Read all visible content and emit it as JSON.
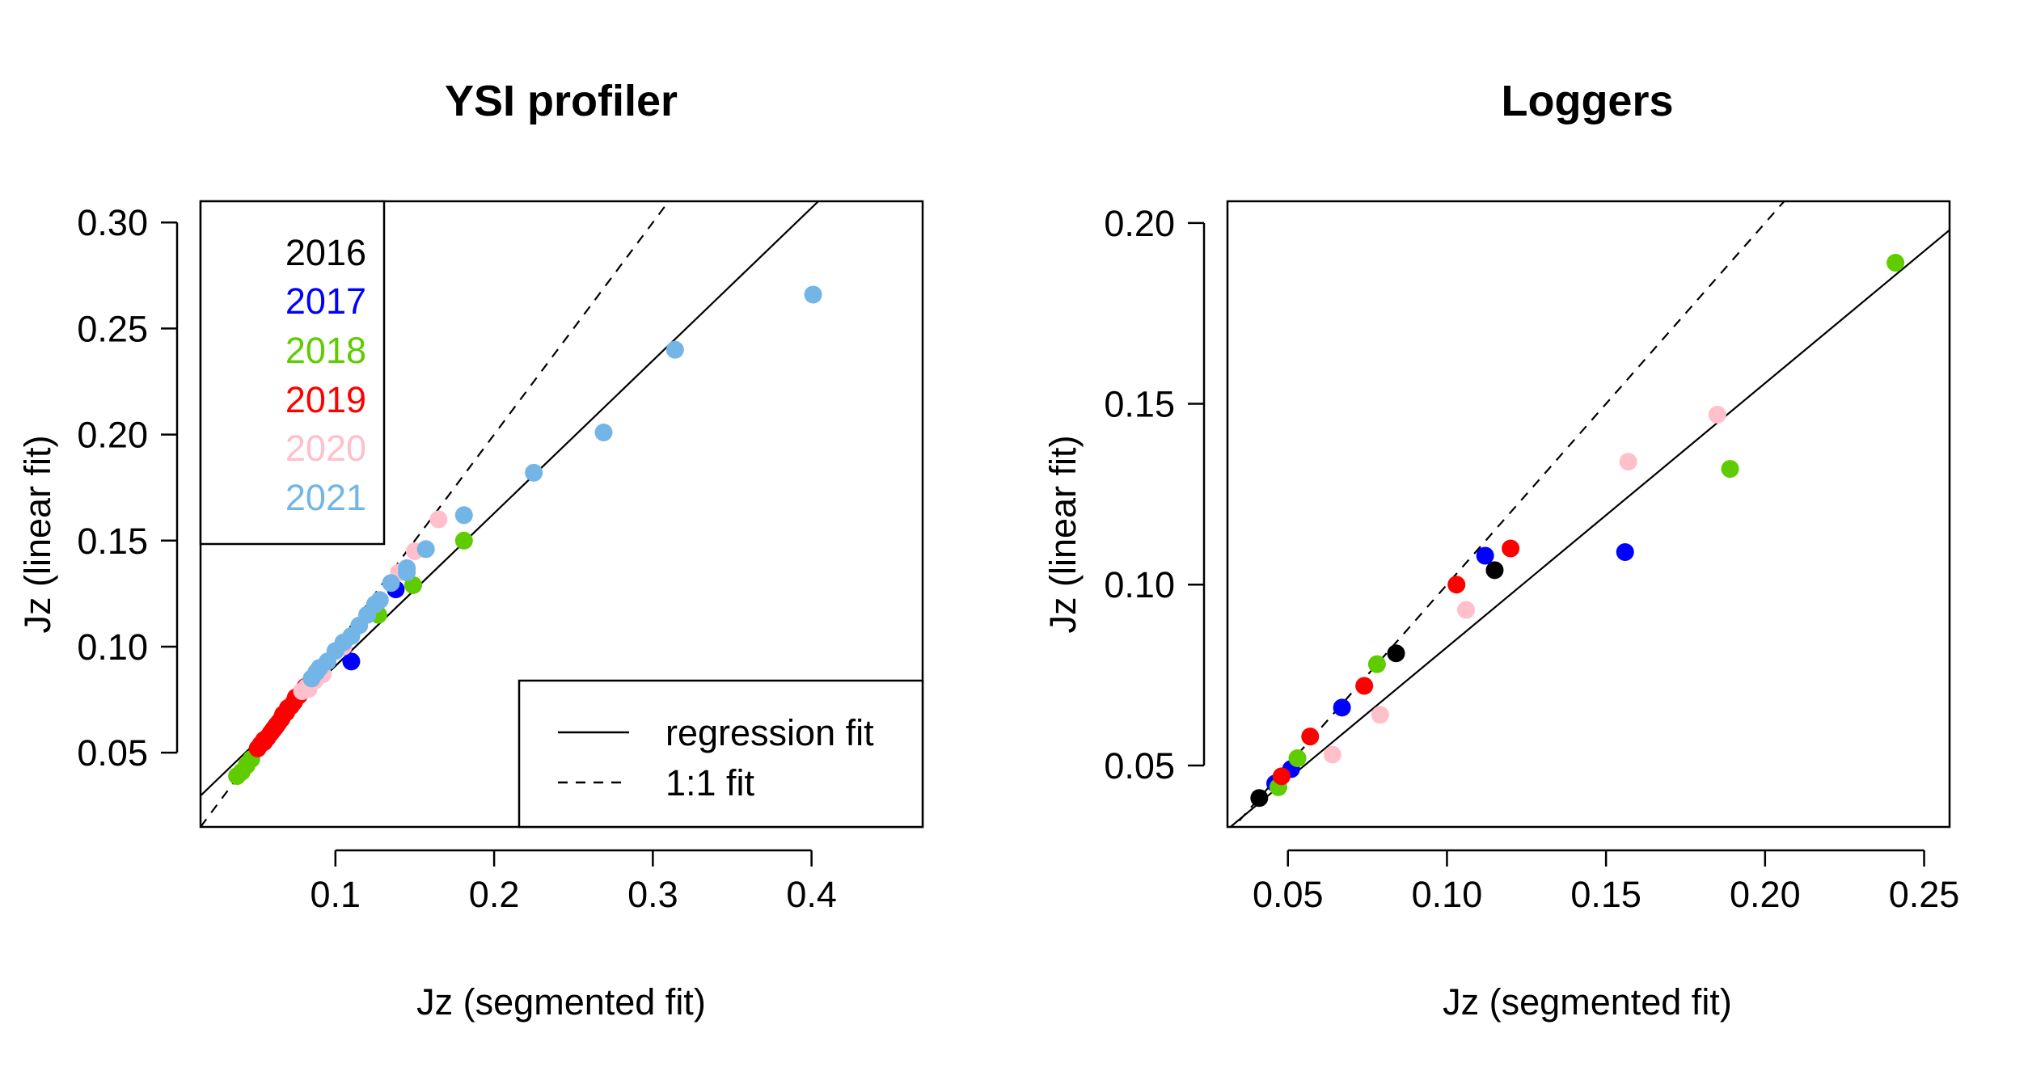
{
  "chart_data": [
    {
      "type": "scatter",
      "title": "YSI profiler",
      "xlabel": "Jz (segmented fit)",
      "ylabel": "Jz (linear fit)",
      "xlim": [
        0.015,
        0.47
      ],
      "ylim": [
        0.015,
        0.31
      ],
      "xticks": [
        0.1,
        0.2,
        0.3,
        0.4
      ],
      "xtick_labels": [
        "0.1",
        "0.2",
        "0.3",
        "0.4"
      ],
      "yticks": [
        0.05,
        0.1,
        0.15,
        0.2,
        0.25,
        0.3
      ],
      "ytick_labels": [
        "0.05",
        "0.10",
        "0.15",
        "0.20",
        "0.25",
        "0.30"
      ],
      "year_legend": {
        "placement": "top-left",
        "entries": [
          {
            "label": "2016",
            "color": "#000000"
          },
          {
            "label": "2017",
            "color": "#0000ff"
          },
          {
            "label": "2018",
            "color": "#5fcc00"
          },
          {
            "label": "2019",
            "color": "#ff0000"
          },
          {
            "label": "2020",
            "color": "#ffc0cb"
          },
          {
            "label": "2021",
            "color": "#73b5e6"
          }
        ]
      },
      "line_legend": {
        "placement": "bottom-right",
        "entries": [
          {
            "label": "regression fit",
            "style": "solid"
          },
          {
            "label": "1:1 fit",
            "style": "dashed"
          }
        ]
      },
      "regression_line": {
        "slope": 0.72,
        "intercept": 0.0189
      },
      "identity_line": {
        "slope": 1,
        "intercept": 0
      },
      "series": [
        {
          "name": "2016",
          "color": "#000000",
          "points": [
            [
              0.063,
              0.063
            ],
            [
              0.066,
              0.066
            ],
            [
              0.061,
              0.061
            ]
          ]
        },
        {
          "name": "2017",
          "color": "#0000ff",
          "points": [
            [
              0.11,
              0.093
            ],
            [
              0.138,
              0.127
            ],
            [
              0.062,
              0.062
            ],
            [
              0.057,
              0.057
            ]
          ]
        },
        {
          "name": "2018",
          "color": "#5fcc00",
          "points": [
            [
              0.038,
              0.039
            ],
            [
              0.041,
              0.041
            ],
            [
              0.044,
              0.044
            ],
            [
              0.047,
              0.047
            ],
            [
              0.127,
              0.115
            ],
            [
              0.149,
              0.129
            ],
            [
              0.181,
              0.15
            ]
          ]
        },
        {
          "name": "2019",
          "color": "#ff0000",
          "points": [
            [
              0.051,
              0.052
            ],
            [
              0.053,
              0.054
            ],
            [
              0.055,
              0.055
            ],
            [
              0.057,
              0.057
            ],
            [
              0.059,
              0.059
            ],
            [
              0.06,
              0.06
            ],
            [
              0.062,
              0.062
            ],
            [
              0.064,
              0.064
            ],
            [
              0.066,
              0.066
            ],
            [
              0.067,
              0.068
            ],
            [
              0.069,
              0.069
            ],
            [
              0.07,
              0.071
            ],
            [
              0.072,
              0.072
            ],
            [
              0.074,
              0.074
            ],
            [
              0.075,
              0.076
            ],
            [
              0.077,
              0.077
            ],
            [
              0.079,
              0.079
            ],
            [
              0.081,
              0.081
            ],
            [
              0.083,
              0.082
            ],
            [
              0.055,
              0.056
            ]
          ]
        },
        {
          "name": "2020",
          "color": "#ffc0cb",
          "points": [
            [
              0.079,
              0.079
            ],
            [
              0.083,
              0.08
            ],
            [
              0.087,
              0.084
            ],
            [
              0.092,
              0.087
            ],
            [
              0.105,
              0.1
            ],
            [
              0.11,
              0.105
            ],
            [
              0.12,
              0.115
            ],
            [
              0.125,
              0.12
            ],
            [
              0.14,
              0.135
            ],
            [
              0.15,
              0.145
            ],
            [
              0.165,
              0.16
            ],
            [
              0.082,
              0.081
            ],
            [
              0.085,
              0.083
            ]
          ]
        },
        {
          "name": "2021",
          "color": "#73b5e6",
          "points": [
            [
              0.085,
              0.085
            ],
            [
              0.088,
              0.088
            ],
            [
              0.09,
              0.09
            ],
            [
              0.095,
              0.093
            ],
            [
              0.1,
              0.098
            ],
            [
              0.105,
              0.102
            ],
            [
              0.11,
              0.105
            ],
            [
              0.115,
              0.11
            ],
            [
              0.12,
              0.115
            ],
            [
              0.125,
              0.12
            ],
            [
              0.128,
              0.122
            ],
            [
              0.135,
              0.13
            ],
            [
              0.145,
              0.135
            ],
            [
              0.145,
              0.137
            ],
            [
              0.157,
              0.146
            ],
            [
              0.181,
              0.162
            ],
            [
              0.225,
              0.182
            ],
            [
              0.269,
              0.201
            ],
            [
              0.314,
              0.24
            ],
            [
              0.401,
              0.266
            ]
          ]
        }
      ]
    },
    {
      "type": "scatter",
      "title": "Loggers",
      "xlabel": "Jz (segmented fit)",
      "ylabel": "Jz (linear fit)",
      "xlim": [
        0.031,
        0.258
      ],
      "ylim": [
        0.033,
        0.206
      ],
      "xticks": [
        0.05,
        0.1,
        0.15,
        0.2,
        0.25
      ],
      "xtick_labels": [
        "0.05",
        "0.10",
        "0.15",
        "0.20",
        "0.25"
      ],
      "yticks": [
        0.05,
        0.1,
        0.15,
        0.2
      ],
      "ytick_labels": [
        "0.05",
        "0.10",
        "0.15",
        "0.20"
      ],
      "regression_line": {
        "slope": 0.73,
        "intercept": 0.0097
      },
      "identity_line": {
        "slope": 1,
        "intercept": 0
      },
      "series": [
        {
          "name": "2016",
          "color": "#000000",
          "points": [
            [
              0.041,
              0.041
            ],
            [
              0.084,
              0.081
            ],
            [
              0.115,
              0.104
            ]
          ]
        },
        {
          "name": "2017",
          "color": "#0000ff",
          "points": [
            [
              0.051,
              0.049
            ],
            [
              0.067,
              0.066
            ],
            [
              0.112,
              0.108
            ],
            [
              0.156,
              0.109
            ],
            [
              0.046,
              0.045
            ]
          ]
        },
        {
          "name": "2018",
          "color": "#5fcc00",
          "points": [
            [
              0.047,
              0.044
            ],
            [
              0.053,
              0.052
            ],
            [
              0.078,
              0.078
            ],
            [
              0.189,
              0.132
            ],
            [
              0.241,
              0.189
            ]
          ]
        },
        {
          "name": "2019",
          "color": "#ff0000",
          "points": [
            [
              0.048,
              0.047
            ],
            [
              0.057,
              0.058
            ],
            [
              0.074,
              0.072
            ],
            [
              0.103,
              0.1
            ],
            [
              0.12,
              0.11
            ]
          ]
        },
        {
          "name": "2020",
          "color": "#ffc0cb",
          "points": [
            [
              0.064,
              0.053
            ],
            [
              0.079,
              0.064
            ],
            [
              0.106,
              0.093
            ],
            [
              0.157,
              0.134
            ],
            [
              0.185,
              0.147
            ]
          ]
        }
      ]
    }
  ]
}
